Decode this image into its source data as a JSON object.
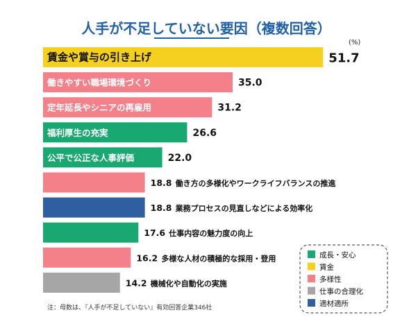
{
  "chart_data": {
    "type": "bar",
    "orientation": "horizontal",
    "title": "人手が不足していない要因（複数回答）",
    "unit": "(%)",
    "note": "注：母数は、『人手が不足していない』有効回答企業346社",
    "bars": [
      {
        "label": "賃金や賞与の引き上げ",
        "value": 51.7,
        "category": "賃金"
      },
      {
        "label": "働きやすい職場環境づくり",
        "value": 35.0,
        "category": "多様性"
      },
      {
        "label": "定年延長やシニアの再雇用",
        "value": 31.2,
        "category": "多様性"
      },
      {
        "label": "福利厚生の充実",
        "value": 26.6,
        "category": "成長・安心"
      },
      {
        "label": "公平で公正な人事評価",
        "value": 22.0,
        "category": "成長・安心"
      },
      {
        "label": "働き方の多様化やワークライフバランスの推進",
        "value": 18.8,
        "category": "多様性"
      },
      {
        "label": "業務プロセスの見直しなどによる効率化",
        "value": 18.8,
        "category": "適材適所"
      },
      {
        "label": "仕事内容の魅力度の向上",
        "value": 17.6,
        "category": "成長・安心"
      },
      {
        "label": "多様な人材の積極的な採用・登用",
        "value": 16.2,
        "category": "多様性"
      },
      {
        "label": "機械化や自動化の実施",
        "value": 14.2,
        "category": "仕事の合理化"
      }
    ],
    "legend": [
      {
        "name": "成長・安心",
        "color": "#1aa872"
      },
      {
        "name": "賃金",
        "color": "#f5d01e"
      },
      {
        "name": "多様性",
        "color": "#f4808a"
      },
      {
        "name": "仕事の合理化",
        "color": "#a6a6a6"
      },
      {
        "name": "適材適所",
        "color": "#2f5fa0"
      }
    ],
    "legend_position": "bottom-right"
  }
}
